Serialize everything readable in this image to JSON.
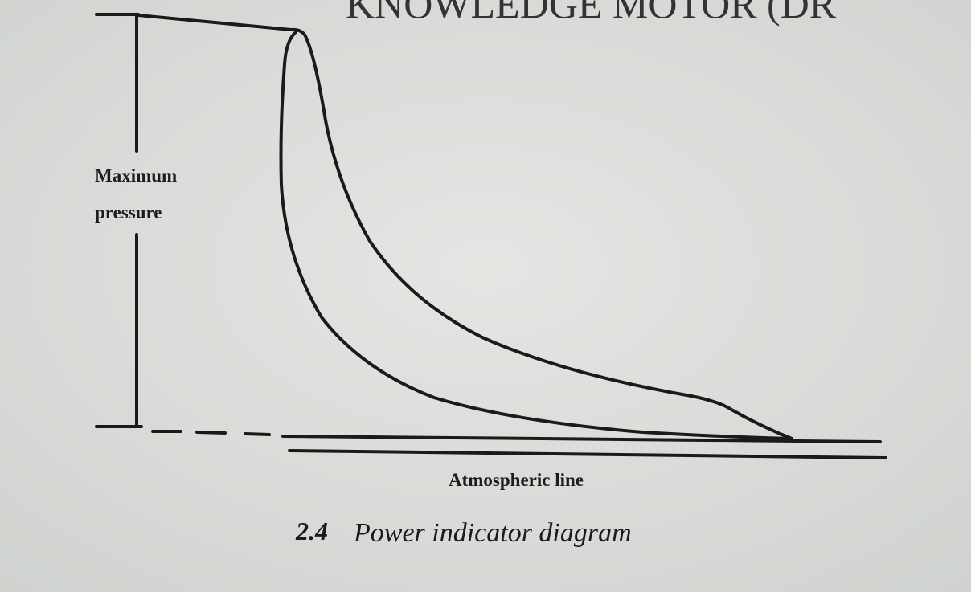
{
  "header": {
    "text": "KNOWLEDGE MOTOR (DR"
  },
  "diagram": {
    "y_label": [
      "Maximum",
      "pressure"
    ],
    "baseline_label": "Atmospheric line"
  },
  "caption": {
    "number": "2.4",
    "title": "Power indicator diagram"
  }
}
